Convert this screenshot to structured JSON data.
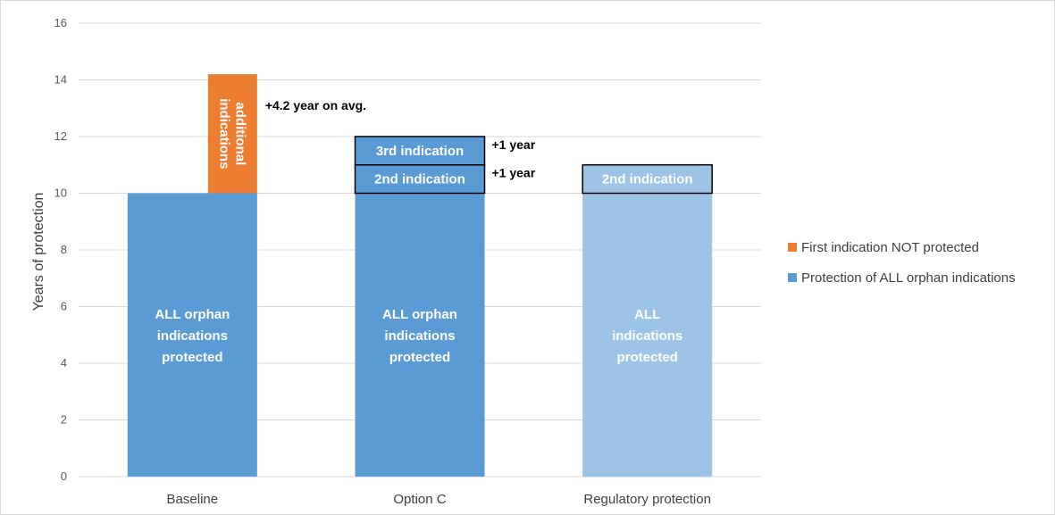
{
  "chart_data": {
    "type": "bar",
    "ylabel": "Years of protection",
    "ylim": [
      0,
      16
    ],
    "yticks": [
      "0",
      "2",
      "4",
      "6",
      "8",
      "10",
      "12",
      "14",
      "16"
    ],
    "categories": [
      "Baseline",
      "Option C",
      "Regulatory protection"
    ],
    "series": [
      {
        "name": "Protection of ALL orphan indications",
        "values": [
          10,
          10,
          10
        ]
      },
      {
        "name": "First indication NOT protected",
        "values": [
          4.2,
          0,
          0
        ]
      }
    ],
    "extra_segments": [
      {
        "category": "Option C",
        "from": 10,
        "to": 11,
        "label": "2nd indication",
        "annotation": "+1 year"
      },
      {
        "category": "Option C",
        "from": 11,
        "to": 12,
        "label": "3rd indication",
        "annotation": "+1 year"
      },
      {
        "category": "Regulatory protection",
        "from": 10,
        "to": 11,
        "label": "2nd indication"
      }
    ],
    "base_labels": [
      [
        "ALL orphan",
        "indications",
        "protected"
      ],
      [
        "ALL orphan",
        "indications",
        "protected"
      ],
      [
        "ALL",
        "indications",
        "protected"
      ]
    ],
    "orange_label": [
      "additional",
      "indications"
    ],
    "orange_annotation": "+4.2 year on avg.",
    "legend": [
      {
        "label": "First indication NOT protected",
        "color": "#ed7d31"
      },
      {
        "label": "Protection of ALL orphan indications",
        "color": "#5b9bd5"
      }
    ],
    "legend_position": "right",
    "colors": {
      "blue": "#5b9bd5",
      "lightblue": "#9dc3e6",
      "orange": "#ed7d31",
      "grid": "#d9d9d9"
    },
    "grid": true
  }
}
